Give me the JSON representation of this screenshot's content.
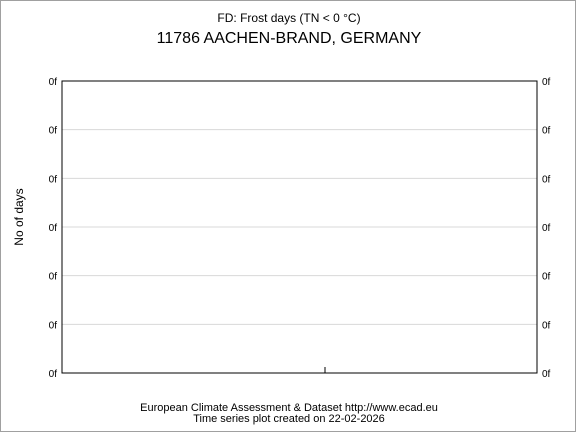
{
  "chart_data": {
    "type": "line",
    "title": "FD: Frost days (TN < 0 °C)",
    "subtitle": "11786 AACHEN-BRAND, GERMANY",
    "ylabel": "No of days",
    "xlabel": "",
    "y_tick_labels": [
      "0f",
      "0f",
      "0f",
      "0f",
      "0f",
      "0f",
      "0f"
    ],
    "series": [],
    "grid": true,
    "colors": {
      "grid": "#d8d8d8",
      "frame": "#000000"
    }
  },
  "footer": {
    "line1": "European Climate Assessment & Dataset  http://www.ecad.eu",
    "line2": "Time series plot created on 22-02-2026"
  }
}
